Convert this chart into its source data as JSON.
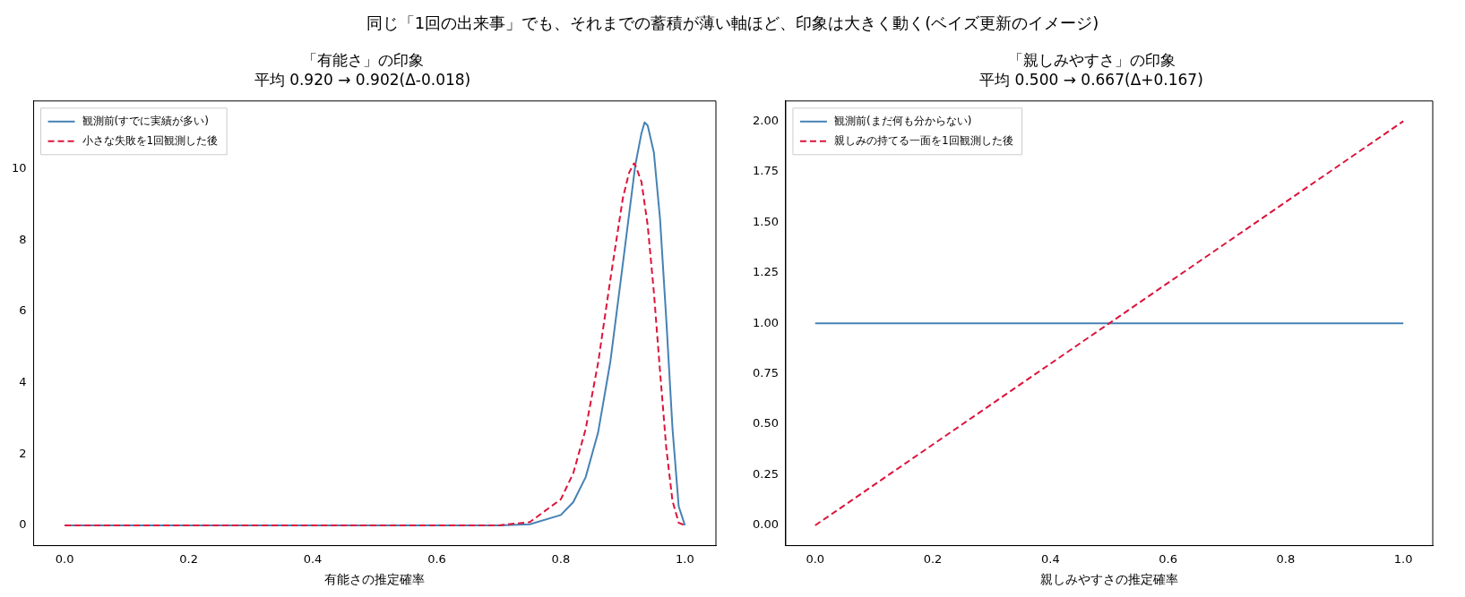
{
  "chart_data": [
    {
      "type": "other",
      "title": "同じ「1回の出来事」でも、それまでの蓄積が薄い軸ほど、印象は大きく動く(ベイズ更新のイメージ)"
    },
    {
      "type": "line",
      "title": "「有能さ」の印象",
      "subtitle": "平均 0.920 → 0.902(Δ-0.018)",
      "xlabel": "有能さの推定確率",
      "xlim": [
        -0.05,
        1.05
      ],
      "xticks": [
        {
          "value": 0,
          "label": "0.0"
        },
        {
          "value": 0.2,
          "label": "0.2"
        },
        {
          "value": 0.4,
          "label": "0.4"
        },
        {
          "value": 0.6,
          "label": "0.6"
        },
        {
          "value": 0.8,
          "label": "0.8"
        },
        {
          "value": 1,
          "label": "1.0"
        }
      ],
      "ylim": [
        -0.57,
        11.9
      ],
      "yticks": [
        0,
        2,
        4,
        6,
        8,
        10
      ],
      "grid": false,
      "legend": "top left",
      "marker": "none",
      "series": [
        {
          "name": "観測前(すでに実績が多い)",
          "color": "#4682b4",
          "line_style": "solid",
          "x": [
            0,
            0.5,
            0.7,
            0.75,
            0.8,
            0.82,
            0.84,
            0.86,
            0.88,
            0.9,
            0.92,
            0.93,
            0.935,
            0.94,
            0.95,
            0.96,
            0.97,
            0.98,
            0.99,
            1
          ],
          "values": [
            0,
            0,
            0,
            0.03,
            0.29,
            0.65,
            1.35,
            2.6,
            4.61,
            7.34,
            10.1,
            11.0,
            11.3,
            11.21,
            10.45,
            8.57,
            5.76,
            2.71,
            0.53,
            0
          ]
        },
        {
          "name": "小さな失敗を1回観測した後",
          "color": "#dc143c",
          "line_style": "dashed",
          "x": [
            0,
            0.5,
            0.7,
            0.75,
            0.8,
            0.82,
            0.84,
            0.86,
            0.88,
            0.9,
            0.91,
            0.918,
            0.92,
            0.93,
            0.94,
            0.95,
            0.96,
            0.97,
            0.98,
            0.99,
            1
          ],
          "values": [
            0,
            0,
            0,
            0.09,
            0.73,
            1.46,
            2.7,
            4.55,
            6.92,
            9.18,
            9.89,
            10.15,
            10.1,
            9.63,
            8.41,
            6.53,
            4.29,
            2.16,
            0.68,
            0.07,
            0
          ]
        }
      ]
    },
    {
      "type": "line",
      "title": "「親しみやすさ」の印象",
      "subtitle": "平均 0.500 → 0.667(Δ+0.167)",
      "xlabel": "親しみやすさの推定確率",
      "xlim": [
        -0.05,
        1.05
      ],
      "xticks": [
        {
          "value": 0,
          "label": "0.0"
        },
        {
          "value": 0.2,
          "label": "0.2"
        },
        {
          "value": 0.4,
          "label": "0.4"
        },
        {
          "value": 0.6,
          "label": "0.6"
        },
        {
          "value": 0.8,
          "label": "0.8"
        },
        {
          "value": 1,
          "label": "1.0"
        }
      ],
      "ylim": [
        -0.1,
        2.1
      ],
      "yticks": [
        {
          "value": 0,
          "label": "0.00"
        },
        {
          "value": 0.25,
          "label": "0.25"
        },
        {
          "value": 0.5,
          "label": "0.50"
        },
        {
          "value": 0.75,
          "label": "0.75"
        },
        {
          "value": 1,
          "label": "1.00"
        },
        {
          "value": 1.25,
          "label": "1.25"
        },
        {
          "value": 1.5,
          "label": "1.50"
        },
        {
          "value": 1.75,
          "label": "1.75"
        },
        {
          "value": 2,
          "label": "2.00"
        }
      ],
      "grid": false,
      "legend": "top left",
      "marker": "none",
      "series": [
        {
          "name": "観測前(まだ何も分からない)",
          "color": "#4682b4",
          "line_style": "solid",
          "x": [
            0,
            1
          ],
          "values": [
            1,
            1
          ]
        },
        {
          "name": "親しみの持てる一面を1回観測した後",
          "color": "#dc143c",
          "line_style": "dashed",
          "x": [
            0,
            1
          ],
          "values": [
            0,
            2
          ]
        }
      ]
    }
  ]
}
